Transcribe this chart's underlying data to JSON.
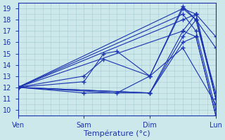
{
  "xlabel": "Température (°c)",
  "ylim": [
    9.5,
    19.5
  ],
  "xlim": [
    0,
    3
  ],
  "yticks": [
    10,
    11,
    12,
    13,
    14,
    15,
    16,
    17,
    18,
    19
  ],
  "day_labels": [
    "Ven",
    "Sam",
    "Dim",
    "Lun"
  ],
  "day_positions": [
    0,
    1,
    2,
    3
  ],
  "bg_color": "#cce8ea",
  "grid_color": "#a8cdd4",
  "line_color": "#1a32b0",
  "series": [
    {
      "x": [
        0,
        1.0,
        1.3,
        1.5,
        2.0,
        2.5,
        2.7,
        3.0
      ],
      "y": [
        12.0,
        12.5,
        15.0,
        15.2,
        13.0,
        19.0,
        18.5,
        11.0
      ]
    },
    {
      "x": [
        0,
        1.0,
        1.3,
        2.0,
        2.5,
        2.7,
        3.0
      ],
      "y": [
        12.0,
        13.0,
        14.5,
        13.0,
        19.2,
        18.0,
        11.5
      ]
    },
    {
      "x": [
        0,
        2.0,
        2.5,
        2.7,
        3.0
      ],
      "y": [
        12.0,
        11.5,
        16.5,
        18.0,
        15.5
      ]
    },
    {
      "x": [
        0,
        2.0,
        2.5,
        2.7,
        3.0
      ],
      "y": [
        12.0,
        11.5,
        17.0,
        18.5,
        16.5
      ]
    },
    {
      "x": [
        0,
        2.5,
        2.7,
        3.0
      ],
      "y": [
        12.0,
        19.0,
        18.0,
        11.0
      ]
    },
    {
      "x": [
        0,
        2.5,
        2.7,
        3.0
      ],
      "y": [
        12.0,
        18.0,
        18.5,
        11.0
      ]
    },
    {
      "x": [
        0,
        2.5,
        2.7,
        3.0
      ],
      "y": [
        12.0,
        18.5,
        17.0,
        10.0
      ]
    },
    {
      "x": [
        0,
        2.5,
        2.7,
        3.0
      ],
      "y": [
        12.0,
        17.0,
        16.5,
        9.5
      ]
    },
    {
      "x": [
        0,
        1.0,
        2.0,
        2.5,
        2.7,
        3.0
      ],
      "y": [
        12.0,
        11.5,
        11.5,
        16.0,
        16.5,
        9.5
      ]
    },
    {
      "x": [
        0,
        1.5,
        2.0,
        2.5,
        3.0
      ],
      "y": [
        12.0,
        11.5,
        13.0,
        15.5,
        10.5
      ]
    }
  ]
}
